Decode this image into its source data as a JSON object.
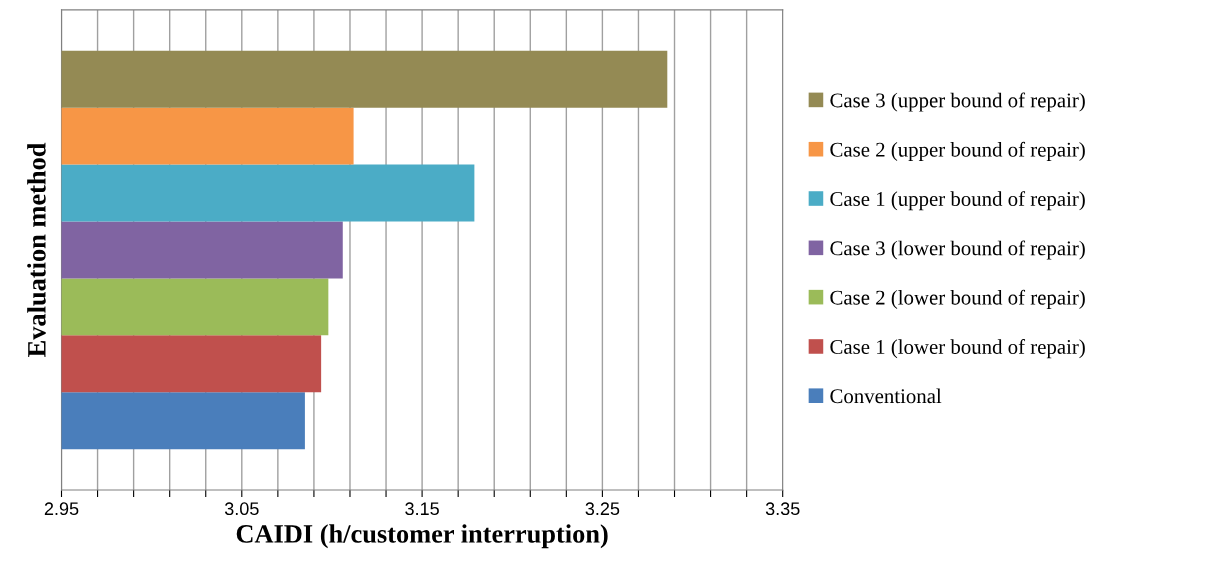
{
  "chart_data": {
    "type": "bar",
    "orientation": "horizontal",
    "xlabel": "CAIDI (h/customer interruption)",
    "ylabel": "Evaluation method",
    "categories": [
      null
    ],
    "series": [
      {
        "name": "Conventional",
        "color": "#4a7ebb",
        "values": [
          3.085
        ]
      },
      {
        "name": "Case 1 (lower bound of repair)",
        "color": "#c0504d",
        "values": [
          3.094
        ]
      },
      {
        "name": "Case 2 (lower bound of repair)",
        "color": "#9bbb59",
        "values": [
          3.098
        ]
      },
      {
        "name": "Case 3 (lower bound of repair)",
        "color": "#8064a2",
        "values": [
          3.106
        ]
      },
      {
        "name": "Case 1 (upper bound of repair)",
        "color": "#4bacc6",
        "values": [
          3.179
        ]
      },
      {
        "name": "Case 2 (upper bound of repair)",
        "color": "#f79646",
        "values": [
          3.112
        ]
      },
      {
        "name": "Case 3 (upper bound of repair)",
        "color": "#948a54",
        "values": [
          3.286
        ]
      }
    ],
    "xlim": [
      2.95,
      3.35
    ],
    "xticks": [
      2.95,
      {
        "value": 2.97,
        "label": null
      },
      {
        "value": 2.99,
        "label": null
      },
      {
        "value": 3.01,
        "label": null
      },
      {
        "value": 3.03,
        "label": null
      },
      3.05,
      {
        "value": 3.07,
        "label": null
      },
      {
        "value": 3.09,
        "label": null
      },
      {
        "value": 3.11,
        "label": null
      },
      {
        "value": 3.13,
        "label": null
      },
      3.15,
      {
        "value": 3.17,
        "label": null
      },
      {
        "value": 3.19,
        "label": null
      },
      {
        "value": 3.21,
        "label": null
      },
      {
        "value": 3.23,
        "label": null
      },
      3.25,
      {
        "value": 3.27,
        "label": null
      },
      {
        "value": 3.29,
        "label": null
      },
      {
        "value": 3.31,
        "label": null
      },
      {
        "value": 3.33,
        "label": null
      },
      3.35
    ],
    "grid": "x",
    "legend": "right"
  }
}
